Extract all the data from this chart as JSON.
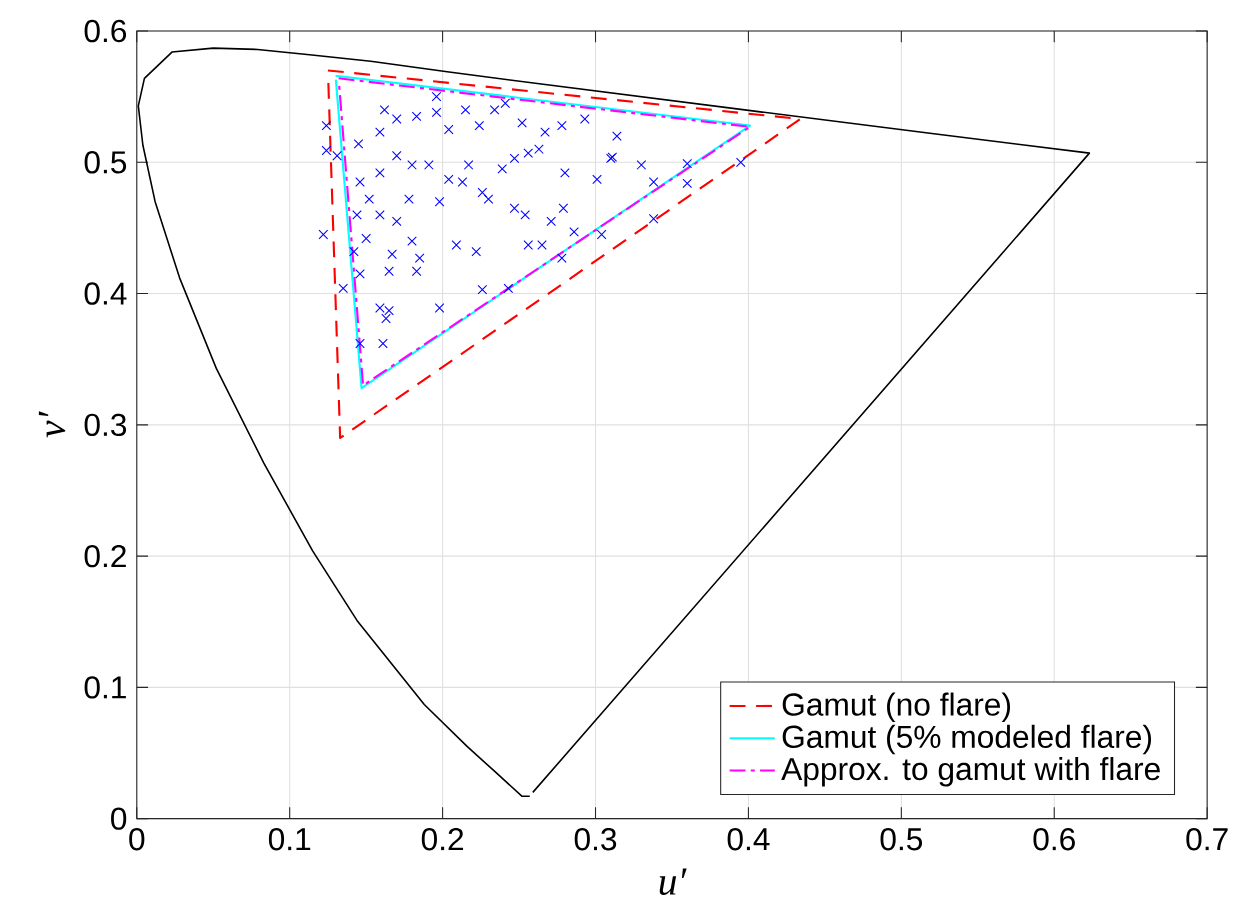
{
  "chart_data": {
    "type": "line",
    "xlabel": "u′",
    "ylabel": "v′",
    "xlim": [
      0,
      0.7
    ],
    "ylim": [
      0,
      0.6
    ],
    "xticks": [
      0,
      0.1,
      0.2,
      0.3,
      0.4,
      0.5,
      0.6,
      0.7
    ],
    "yticks": [
      0,
      0.1,
      0.2,
      0.3,
      0.4,
      0.5,
      0.6
    ],
    "grid": true,
    "legend": "bottom right",
    "series": [
      {
        "color": "#000000",
        "line_style": "solid",
        "x": [
          0.257,
          0.252,
          0.235,
          0.216,
          0.188,
          0.144,
          0.115,
          0.083,
          0.052,
          0.028,
          0.012,
          0.004,
          0.001,
          0.005,
          0.023,
          0.05,
          0.079,
          0.113,
          0.153,
          0.203,
          0.262,
          0.404,
          0.52,
          0.623,
          0.259
        ],
        "values": [
          0.017,
          0.017,
          0.035,
          0.055,
          0.087,
          0.151,
          0.204,
          0.271,
          0.343,
          0.412,
          0.47,
          0.513,
          0.543,
          0.564,
          0.584,
          0.587,
          0.586,
          0.582,
          0.577,
          0.569,
          0.56,
          0.539,
          0.522,
          0.507,
          0.02
        ]
      },
      {
        "name": "Gamut (no flare)",
        "color": "#ff0000",
        "line_style": "dashed",
        "x": [
          0.125,
          0.434,
          0.133,
          0.1251
        ],
        "values": [
          0.57,
          0.533,
          0.29,
          0.567
        ]
      },
      {
        "name": "Gamut (5% modeled flare)",
        "color": "#00ffff",
        "line_style": "solid",
        "x": [
          0.13,
          0.401,
          0.147,
          0.1302
        ],
        "values": [
          0.566,
          0.528,
          0.328,
          0.563
        ]
      },
      {
        "name": "Approx. to gamut with flare",
        "color": "#ff00ff",
        "line_style": "dashdot",
        "x": [
          0.132,
          0.401,
          0.148,
          0.1322
        ],
        "values": [
          0.564,
          0.527,
          0.33,
          0.561
        ]
      },
      {
        "type": "scatter",
        "color": "#0000ff",
        "marker": "cross",
        "x": [
          0.124,
          0.124,
          0.131,
          0.145,
          0.162,
          0.17,
          0.183,
          0.196,
          0.196,
          0.204,
          0.215,
          0.224,
          0.234,
          0.241,
          0.252,
          0.267,
          0.278,
          0.293,
          0.314,
          0.31,
          0.301,
          0.28,
          0.263,
          0.247,
          0.239,
          0.226,
          0.213,
          0.204,
          0.198,
          0.191,
          0.18,
          0.17,
          0.159,
          0.152,
          0.146,
          0.144,
          0.159,
          0.17,
          0.178,
          0.18,
          0.167,
          0.15,
          0.142,
          0.146,
          0.135,
          0.122,
          0.165,
          0.183,
          0.185,
          0.209,
          0.222,
          0.254,
          0.256,
          0.265,
          0.271,
          0.286,
          0.278,
          0.243,
          0.226,
          0.198,
          0.159,
          0.163,
          0.165,
          0.161,
          0.146,
          0.23,
          0.247,
          0.256,
          0.217,
          0.159,
          0.311,
          0.338,
          0.33,
          0.36,
          0.36,
          0.395,
          0.338,
          0.304,
          0.279
        ],
        "values": [
          0.528,
          0.509,
          0.505,
          0.514,
          0.54,
          0.533,
          0.535,
          0.55,
          0.538,
          0.525,
          0.54,
          0.528,
          0.54,
          0.545,
          0.53,
          0.523,
          0.528,
          0.533,
          0.52,
          0.503,
          0.487,
          0.492,
          0.51,
          0.503,
          0.495,
          0.477,
          0.485,
          0.487,
          0.47,
          0.498,
          0.498,
          0.505,
          0.492,
          0.472,
          0.485,
          0.46,
          0.46,
          0.455,
          0.472,
          0.44,
          0.43,
          0.442,
          0.432,
          0.415,
          0.404,
          0.445,
          0.417,
          0.417,
          0.427,
          0.437,
          0.432,
          0.46,
          0.437,
          0.437,
          0.455,
          0.447,
          0.427,
          0.404,
          0.403,
          0.389,
          0.389,
          0.381,
          0.387,
          0.362,
          0.362,
          0.472,
          0.465,
          0.507,
          0.498,
          0.523,
          0.504,
          0.485,
          0.498,
          0.499,
          0.484,
          0.5,
          0.457,
          0.445,
          0.465
        ]
      }
    ]
  }
}
